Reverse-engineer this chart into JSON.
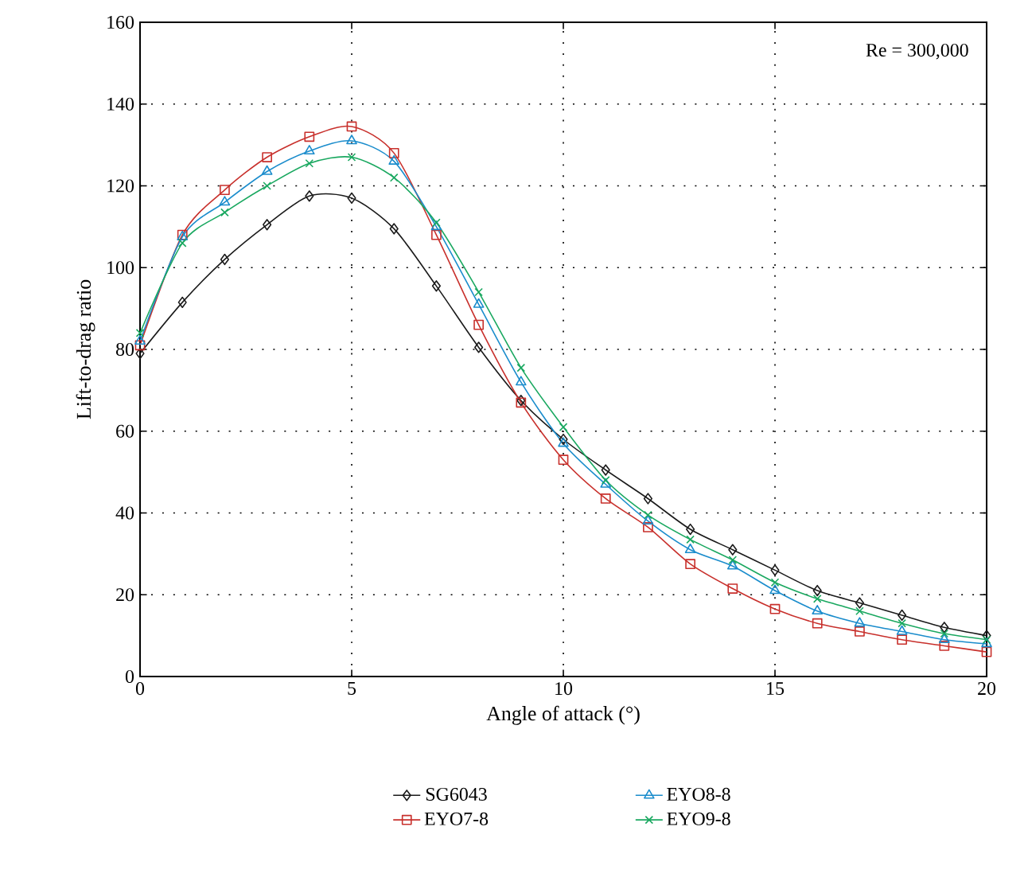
{
  "chart_data": {
    "type": "line",
    "xlabel": "Angle of attack (°)",
    "ylabel": "Lift-to-drag ratio",
    "x": [
      0,
      1,
      2,
      3,
      4,
      5,
      6,
      7,
      8,
      9,
      10,
      11,
      12,
      13,
      14,
      15,
      16,
      17,
      18,
      19,
      20
    ],
    "xlim": [
      0,
      20
    ],
    "xticks": [
      0,
      5,
      10,
      15,
      20
    ],
    "ylim": [
      0,
      160
    ],
    "yticks": [
      0,
      20,
      40,
      60,
      80,
      100,
      120,
      140,
      160
    ],
    "grid": true,
    "legend": "bottom",
    "line_style": "solid",
    "annotations": [
      "Re = 300,000"
    ],
    "series": [
      {
        "name": "SG6043",
        "color": "#1a1a1a",
        "marker": "diamond",
        "values": [
          79,
          91.5,
          102,
          110.5,
          117.5,
          117,
          109.5,
          95.5,
          80.5,
          67.5,
          58,
          50.5,
          43.5,
          36,
          31,
          26,
          21,
          18,
          15,
          12,
          10
        ]
      },
      {
        "name": "EYO7-8",
        "color": "#c8302c",
        "marker": "square",
        "values": [
          81,
          108,
          119,
          127,
          132,
          134.5,
          128,
          108,
          86,
          67,
          53,
          43.5,
          36.5,
          27.5,
          21.5,
          16.5,
          13,
          11,
          9,
          7.5,
          6
        ]
      },
      {
        "name": "EYO8-8",
        "color": "#1a8ccc",
        "marker": "triangle",
        "values": [
          82,
          107.5,
          116,
          123.5,
          128.5,
          131,
          126,
          110,
          91,
          72,
          57,
          47,
          38,
          31,
          27,
          21,
          16,
          13,
          11,
          9,
          8
        ]
      },
      {
        "name": "EYO9-8",
        "color": "#1aa860",
        "marker": "cross",
        "values": [
          84,
          106,
          113.5,
          120,
          125.5,
          127,
          122,
          111,
          94,
          75.5,
          61,
          48,
          39.5,
          33.5,
          28.5,
          23,
          19,
          16,
          13,
          10.5,
          9
        ]
      }
    ]
  }
}
